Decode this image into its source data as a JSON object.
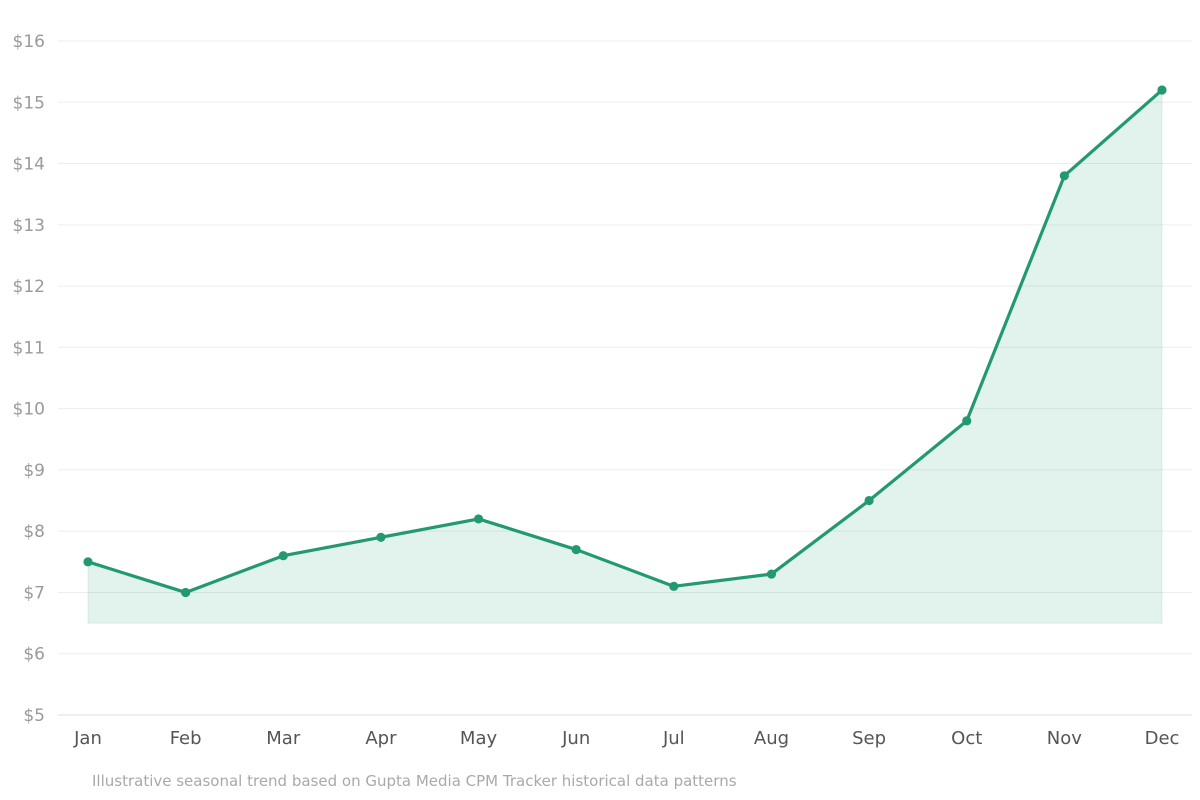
{
  "chart_data": {
    "type": "area",
    "categories": [
      "Jan",
      "Feb",
      "Mar",
      "Apr",
      "May",
      "Jun",
      "Jul",
      "Aug",
      "Sep",
      "Oct",
      "Nov",
      "Dec"
    ],
    "series": [
      {
        "values": [
          7.5,
          7.0,
          7.6,
          7.9,
          8.2,
          7.7,
          7.1,
          7.3,
          8.5,
          9.8,
          13.8,
          15.2
        ]
      }
    ],
    "fill_baseline": 6.5,
    "ylim": [
      5,
      16
    ],
    "yticks": [
      5,
      6,
      7,
      8,
      9,
      10,
      11,
      12,
      13,
      14,
      15,
      16
    ],
    "ytick_labels": [
      "$5",
      "$6",
      "$7",
      "$8",
      "$9",
      "$10",
      "$11",
      "$12",
      "$13",
      "$14",
      "$15",
      "$16"
    ],
    "grid": true,
    "title": "",
    "xlabel": "",
    "ylabel": "",
    "colors": {
      "line": "#229970",
      "fill": "#229970",
      "grid": "#ededed",
      "axis": "#dddddd"
    }
  },
  "caption": "Illustrative seasonal trend based on Gupta Media CPM Tracker historical data patterns"
}
